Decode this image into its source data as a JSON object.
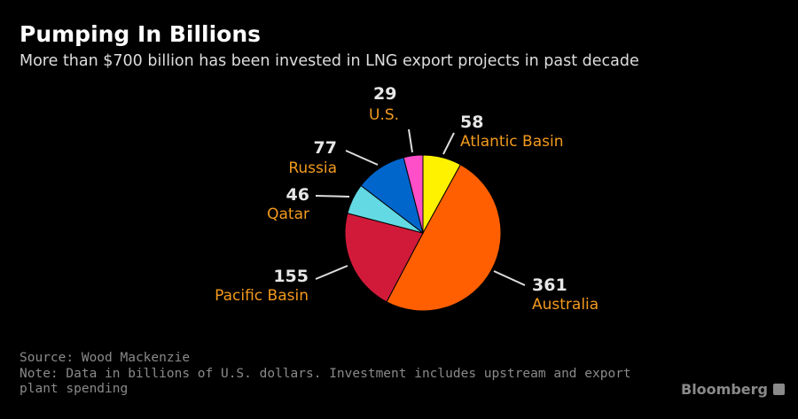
{
  "title": "Pumping In Billions",
  "subtitle": "More than $700 billion has been invested in LNG export projects in past decade",
  "chart_data": {
    "type": "pie",
    "categories": [
      "Atlantic Basin",
      "Australia",
      "Pacific Basin",
      "Qatar",
      "Russia",
      "U.S."
    ],
    "values": [
      58,
      361,
      155,
      46,
      77,
      29
    ],
    "labels": [
      "58",
      "361",
      "155",
      "46",
      "77",
      "29"
    ],
    "colors": [
      "#fff200",
      "#ff5f00",
      "#d11a3a",
      "#63d9e3",
      "#0066cc",
      "#ff4fc8"
    ]
  },
  "footer": {
    "source": "Source: Wood Mackenzie",
    "note": "Note: Data in billions of U.S. dollars. Investment includes upstream and export plant spending"
  },
  "brand": "Bloomberg"
}
